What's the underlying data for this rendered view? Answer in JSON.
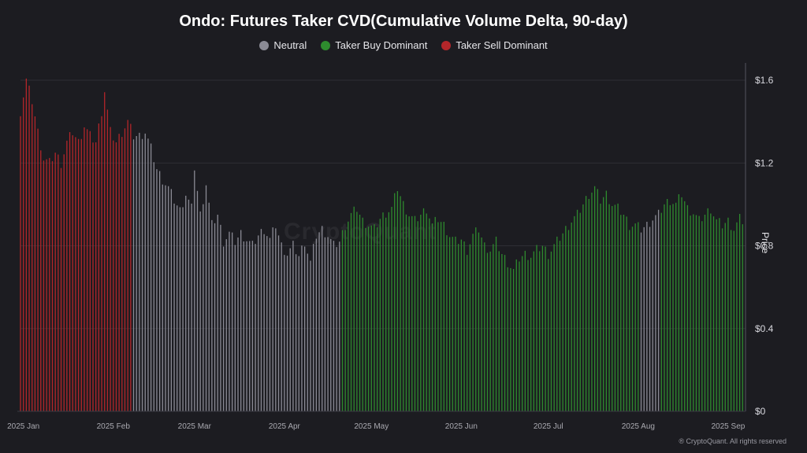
{
  "chart_data": {
    "type": "bar",
    "title": "Ondo: Futures Taker CVD(Cumulative Volume Delta, 90-day)",
    "ylabel": "Price",
    "ylim": [
      0,
      1.6
    ],
    "y_ticks": [
      "$0",
      "$0.4",
      "$0.8",
      "$1.2",
      "$1.6"
    ],
    "y_tick_values": [
      0,
      0.4,
      0.8,
      1.2,
      1.6
    ],
    "x_ticks": [
      "2025 Jan",
      "2025 Feb",
      "2025 Mar",
      "2025 Apr",
      "2025 May",
      "2025 Jun",
      "2025 Jul",
      "2025 Aug",
      "2025 Sep"
    ],
    "x_tick_positions": [
      1,
      32,
      60,
      91,
      121,
      152,
      182,
      213,
      244
    ],
    "grid": true,
    "legend_position": "top-center",
    "series": [
      {
        "name": "Neutral",
        "color": "#8b8b95"
      },
      {
        "name": "Taker Buy Dominant",
        "color": "#2e8b2e"
      },
      {
        "name": "Taker Sell Dominant",
        "color": "#b3262a"
      }
    ],
    "regimes": [
      {
        "series": "Taker Sell Dominant",
        "from_day": 0,
        "to_day": 38
      },
      {
        "series": "Neutral",
        "from_day": 39,
        "to_day": 110
      },
      {
        "series": "Taker Buy Dominant",
        "from_day": 111,
        "to_day": 213
      },
      {
        "series": "Neutral",
        "from_day": 214,
        "to_day": 220
      },
      {
        "series": "Taker Buy Dominant",
        "from_day": 221,
        "to_day": 249
      }
    ],
    "price_anchors": [
      [
        0,
        1.45
      ],
      [
        2,
        1.6
      ],
      [
        4,
        1.5
      ],
      [
        6,
        1.35
      ],
      [
        8,
        1.22
      ],
      [
        10,
        1.2
      ],
      [
        12,
        1.25
      ],
      [
        14,
        1.2
      ],
      [
        16,
        1.3
      ],
      [
        18,
        1.35
      ],
      [
        20,
        1.3
      ],
      [
        22,
        1.38
      ],
      [
        24,
        1.33
      ],
      [
        26,
        1.3
      ],
      [
        28,
        1.45
      ],
      [
        29,
        1.55
      ],
      [
        31,
        1.35
      ],
      [
        33,
        1.3
      ],
      [
        35,
        1.35
      ],
      [
        37,
        1.4
      ],
      [
        39,
        1.33
      ],
      [
        41,
        1.33
      ],
      [
        43,
        1.35
      ],
      [
        45,
        1.27
      ],
      [
        47,
        1.17
      ],
      [
        49,
        1.12
      ],
      [
        51,
        1.08
      ],
      [
        53,
        1.02
      ],
      [
        55,
        0.97
      ],
      [
        57,
        1.05
      ],
      [
        59,
        0.98
      ],
      [
        60,
        1.18
      ],
      [
        62,
        0.95
      ],
      [
        64,
        1.1
      ],
      [
        66,
        0.9
      ],
      [
        68,
        0.95
      ],
      [
        70,
        0.82
      ],
      [
        72,
        0.86
      ],
      [
        74,
        0.82
      ],
      [
        76,
        0.86
      ],
      [
        78,
        0.83
      ],
      [
        80,
        0.8
      ],
      [
        82,
        0.85
      ],
      [
        84,
        0.88
      ],
      [
        86,
        0.83
      ],
      [
        88,
        0.9
      ],
      [
        90,
        0.8
      ],
      [
        92,
        0.76
      ],
      [
        94,
        0.8
      ],
      [
        96,
        0.75
      ],
      [
        98,
        0.82
      ],
      [
        100,
        0.72
      ],
      [
        102,
        0.85
      ],
      [
        104,
        0.88
      ],
      [
        106,
        0.85
      ],
      [
        108,
        0.8
      ],
      [
        110,
        0.82
      ],
      [
        112,
        0.9
      ],
      [
        114,
        0.95
      ],
      [
        116,
        0.98
      ],
      [
        118,
        0.92
      ],
      [
        120,
        0.9
      ],
      [
        122,
        0.88
      ],
      [
        124,
        0.93
      ],
      [
        126,
        0.96
      ],
      [
        128,
        0.98
      ],
      [
        130,
        1.08
      ],
      [
        132,
        1.0
      ],
      [
        134,
        0.95
      ],
      [
        136,
        0.92
      ],
      [
        138,
        0.95
      ],
      [
        140,
        0.98
      ],
      [
        142,
        0.9
      ],
      [
        144,
        0.93
      ],
      [
        146,
        0.9
      ],
      [
        148,
        0.85
      ],
      [
        150,
        0.82
      ],
      [
        152,
        0.83
      ],
      [
        154,
        0.78
      ],
      [
        156,
        0.85
      ],
      [
        158,
        0.88
      ],
      [
        160,
        0.8
      ],
      [
        162,
        0.78
      ],
      [
        164,
        0.82
      ],
      [
        166,
        0.76
      ],
      [
        168,
        0.72
      ],
      [
        170,
        0.68
      ],
      [
        172,
        0.74
      ],
      [
        174,
        0.76
      ],
      [
        176,
        0.75
      ],
      [
        178,
        0.78
      ],
      [
        180,
        0.8
      ],
      [
        182,
        0.76
      ],
      [
        184,
        0.8
      ],
      [
        186,
        0.84
      ],
      [
        188,
        0.88
      ],
      [
        190,
        0.92
      ],
      [
        192,
        0.95
      ],
      [
        194,
        1.0
      ],
      [
        196,
        1.05
      ],
      [
        198,
        1.08
      ],
      [
        200,
        1.02
      ],
      [
        202,
        1.05
      ],
      [
        204,
        1.0
      ],
      [
        206,
        0.98
      ],
      [
        208,
        0.95
      ],
      [
        210,
        0.9
      ],
      [
        212,
        0.9
      ],
      [
        214,
        0.88
      ],
      [
        216,
        0.9
      ],
      [
        218,
        0.93
      ],
      [
        220,
        0.95
      ],
      [
        222,
        1.0
      ],
      [
        224,
        1.02
      ],
      [
        226,
        1.0
      ],
      [
        228,
        1.05
      ],
      [
        230,
        0.98
      ],
      [
        232,
        0.96
      ],
      [
        234,
        0.92
      ],
      [
        236,
        0.95
      ],
      [
        238,
        0.98
      ],
      [
        240,
        0.92
      ],
      [
        242,
        0.9
      ],
      [
        244,
        0.92
      ],
      [
        246,
        0.88
      ],
      [
        248,
        0.93
      ],
      [
        249,
        0.92
      ]
    ]
  },
  "footer": "® CryptoQuant. All rights reserved",
  "watermark": "CryptoQuant"
}
